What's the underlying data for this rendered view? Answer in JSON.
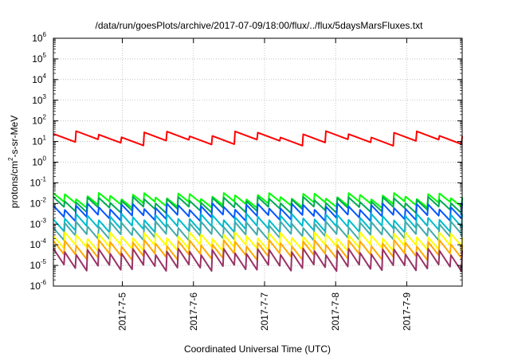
{
  "chart_data": {
    "type": "line",
    "title": "/data/run/goesPlots/archive/2017-07-09/18:00/flux/../flux/5daysMarsFluxes.txt",
    "xlabel": "Coordinated Universal Time (UTC)",
    "ylabel": "protons/cm2-s-sr-MeV",
    "yscale": "log",
    "ylim": [
      1e-06,
      1000000.0
    ],
    "xlim": [
      -0.97,
      4.78
    ],
    "x_unit": "days from 2017-07-05 00:00 UTC",
    "grid": true,
    "y_tick_labels": [
      {
        "base": "10",
        "exp": "-6"
      },
      {
        "base": "10",
        "exp": "-5"
      },
      {
        "base": "10",
        "exp": "-4"
      },
      {
        "base": "10",
        "exp": "-3"
      },
      {
        "base": "10",
        "exp": "-2"
      },
      {
        "base": "10",
        "exp": "-1"
      },
      {
        "base": "10",
        "exp": "0"
      },
      {
        "base": "10",
        "exp": "1"
      },
      {
        "base": "10",
        "exp": "2"
      },
      {
        "base": "10",
        "exp": "3"
      },
      {
        "base": "10",
        "exp": "4"
      },
      {
        "base": "10",
        "exp": "5"
      },
      {
        "base": "10",
        "exp": "6"
      }
    ],
    "x_ticks": [
      {
        "label": "2017-7-5",
        "value": 0
      },
      {
        "label": "2017-7-6",
        "value": 1
      },
      {
        "label": "2017-7-7",
        "value": 2
      },
      {
        "label": "2017-7-8",
        "value": 3
      },
      {
        "label": "2017-7-9",
        "value": 4
      }
    ],
    "series": [
      {
        "color": "#ff0000",
        "baseline": 15,
        "amplitude": 2.5,
        "teeth": 18
      },
      {
        "color": "#00ff00",
        "baseline": 0.015,
        "amplitude": 2.6,
        "teeth": 36
      },
      {
        "color": "#00aa55",
        "baseline": 0.009,
        "amplitude": 3.0,
        "teeth": 36
      },
      {
        "color": "#0055ff",
        "baseline": 0.004,
        "amplitude": 3.5,
        "teeth": 36
      },
      {
        "color": "#00bbcc",
        "baseline": 0.0012,
        "amplitude": 3.8,
        "teeth": 36
      },
      {
        "color": "#44aaaa",
        "baseline": 0.0005,
        "amplitude": 4.0,
        "teeth": 36
      },
      {
        "color": "#ffff00",
        "baseline": 0.00015,
        "amplitude": 4.0,
        "teeth": 36
      },
      {
        "color": "#ffaa00",
        "baseline": 6e-05,
        "amplitude": 4.5,
        "teeth": 36
      },
      {
        "color": "#993366",
        "baseline": 2e-05,
        "amplitude": 6.0,
        "teeth": 36
      }
    ]
  }
}
